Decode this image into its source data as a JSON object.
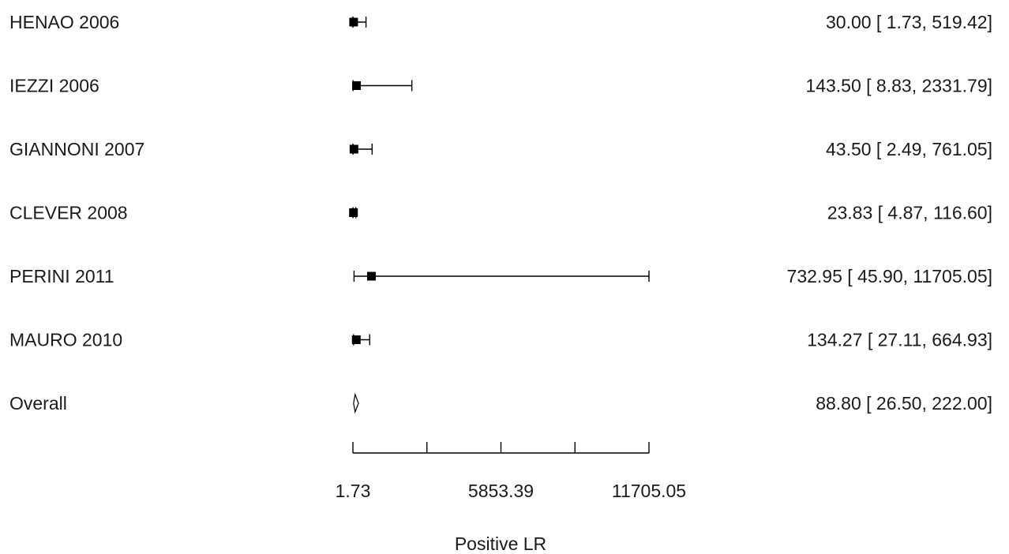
{
  "chart_data": {
    "type": "forest",
    "studies": [
      {
        "label": "HENAO 2006",
        "estimate": 30.0,
        "lower": 1.73,
        "upper": 519.42,
        "ci_text": "30.00 [   1.73,   519.42]"
      },
      {
        "label": "IEZZI 2006",
        "estimate": 143.5,
        "lower": 8.83,
        "upper": 2331.79,
        "ci_text": "143.50 [   8.83,  2331.79]"
      },
      {
        "label": "GIANNONI 2007",
        "estimate": 43.5,
        "lower": 2.49,
        "upper": 761.05,
        "ci_text": "43.50 [   2.49,   761.05]"
      },
      {
        "label": "CLEVER 2008",
        "estimate": 23.83,
        "lower": 4.87,
        "upper": 116.6,
        "ci_text": "23.83 [   4.87,   116.60]"
      },
      {
        "label": "PERINI 2011",
        "estimate": 732.95,
        "lower": 45.9,
        "upper": 11705.05,
        "ci_text": "732.95 [  45.90, 11705.05]"
      },
      {
        "label": "MAURO 2010",
        "estimate": 134.27,
        "lower": 27.11,
        "upper": 664.93,
        "ci_text": "134.27 [  27.11,   664.93]"
      }
    ],
    "overall": {
      "label": "Overall",
      "estimate": 88.8,
      "lower": 26.5,
      "upper": 222.0,
      "ci_text": "88.80 [  26.50,   222.00]"
    },
    "xlim": [
      1.73,
      11705.05
    ],
    "tick_values": [
      1.73,
      2927.56,
      5853.39,
      8779.22,
      11705.05
    ],
    "tick_labels": [
      "1.73",
      "",
      "5853.39",
      "",
      "11705.05"
    ],
    "xlabel": "Positive LR",
    "title": ""
  }
}
